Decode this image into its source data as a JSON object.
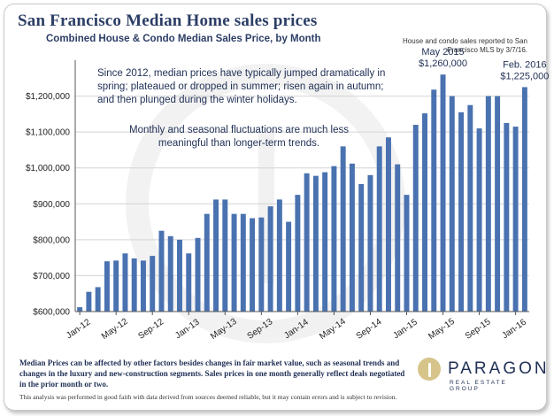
{
  "header": {
    "title": "San Francisco Median Home sales prices",
    "subtitle": "Combined House & Condo Median Sales Price, by Month",
    "source_note": "House and condo sales reported to San Francisco MLS by 3/7/16."
  },
  "notes": {
    "seasonal": "Since 2012, median prices have typically jumped dramatically in spring; plateaued or dropped in summer; risen again in autumn; and then plunged during the winter holidays.",
    "fluctuations": "Monthly and seasonal fluctuations are much less meaningful than longer-term trends."
  },
  "footer": {
    "disclaimer": "Median Prices can be affected by other factors besides changes in fair market value, such as seasonal trends and changes in the luxury and new-construction segments. Sales prices in one month generally reflect deals negotiated in the prior month or two.",
    "legal": "This analysis was performed in good faith with data derived from sources deemed reliable, but it may contain errors and is subject to revision."
  },
  "logo": {
    "name": "PARAGON",
    "tagline": "REAL ESTATE GROUP"
  },
  "chart_data": {
    "type": "bar",
    "bar_color": "#4a72b0",
    "ylim": [
      600000,
      1300000
    ],
    "yticks": [
      600000,
      700000,
      800000,
      900000,
      1000000,
      1100000,
      1200000
    ],
    "ytick_labels": [
      "$600,000",
      "$700,000",
      "$800,000",
      "$900,000",
      "$1,000,000",
      "$1,100,000",
      "$1,200,000"
    ],
    "xtick_labels": [
      "Jan-12",
      "May-12",
      "Sep-12",
      "Jan-13",
      "May-13",
      "Sep-13",
      "Jan-14",
      "May-14",
      "Sep-14",
      "Jan-15",
      "May-15",
      "Sep-15",
      "Jan-16"
    ],
    "grid": true,
    "categories": [
      "Jan-12",
      "Feb-12",
      "Mar-12",
      "Apr-12",
      "May-12",
      "Jun-12",
      "Jul-12",
      "Aug-12",
      "Sep-12",
      "Oct-12",
      "Nov-12",
      "Dec-12",
      "Jan-13",
      "Feb-13",
      "Mar-13",
      "Apr-13",
      "May-13",
      "Jun-13",
      "Jul-13",
      "Aug-13",
      "Sep-13",
      "Oct-13",
      "Nov-13",
      "Dec-13",
      "Jan-14",
      "Feb-14",
      "Mar-14",
      "Apr-14",
      "May-14",
      "Jun-14",
      "Jul-14",
      "Aug-14",
      "Sep-14",
      "Oct-14",
      "Nov-14",
      "Dec-14",
      "Jan-15",
      "Feb-15",
      "Mar-15",
      "Apr-15",
      "May-15",
      "Jun-15",
      "Jul-15",
      "Aug-15",
      "Sep-15",
      "Oct-15",
      "Nov-15",
      "Dec-15",
      "Jan-16",
      "Feb-16"
    ],
    "values": [
      612000,
      655000,
      668000,
      740000,
      742000,
      762000,
      748000,
      742000,
      755000,
      825000,
      810000,
      800000,
      762000,
      805000,
      872000,
      912000,
      912000,
      872000,
      872000,
      860000,
      862000,
      893000,
      912000,
      850000,
      925000,
      985000,
      978000,
      988000,
      1005000,
      1060000,
      1012000,
      955000,
      980000,
      1060000,
      1085000,
      1010000,
      925000,
      1120000,
      1152000,
      1218000,
      1260000,
      1200000,
      1155000,
      1175000,
      1110000,
      1200000,
      1200000,
      1125000,
      1115000,
      1225000
    ],
    "annotations": [
      {
        "label": "May 2015",
        "value_label": "$1,260,000",
        "index": 40
      },
      {
        "label": "Feb. 2016",
        "value_label": "$1,225,000",
        "index": 49
      }
    ]
  }
}
